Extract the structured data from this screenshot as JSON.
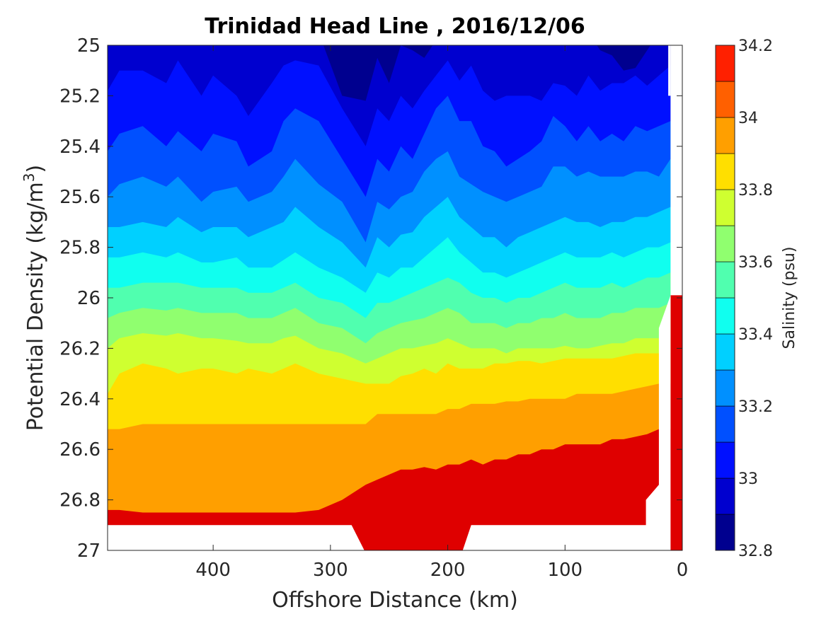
{
  "chart_data": {
    "type": "filled-contour",
    "title": "Trinidad Head Line , 2016/12/06",
    "xlabel": "Offshore Distance (km)",
    "ylabel_prefix": "Potential Density (kg/m",
    "ylabel_sup": "3",
    "ylabel_suffix": ")",
    "xlim": [
      490,
      0
    ],
    "x_reversed": true,
    "ylim": [
      25,
      27
    ],
    "y_reversed": true,
    "xticks": [
      "400",
      "300",
      "200",
      "100",
      "0"
    ],
    "yticks": [
      "25",
      "25.2",
      "25.4",
      "25.6",
      "25.8",
      "26",
      "26.2",
      "26.4",
      "26.6",
      "26.8",
      "27"
    ],
    "colorbar": {
      "label": "Salinity (psu)",
      "range": [
        32.8,
        34.2
      ],
      "ticks": [
        "32.8",
        "33",
        "33.2",
        "33.4",
        "33.6",
        "33.8",
        "34",
        "34.2"
      ],
      "levels": [
        32.8,
        32.9,
        33.0,
        33.1,
        33.2,
        33.3,
        33.4,
        33.5,
        33.6,
        33.7,
        33.8,
        33.9,
        34.0,
        34.1,
        34.2
      ],
      "colors": [
        "#00008f",
        "#0000cf",
        "#0010ff",
        "#0050ff",
        "#0090ff",
        "#00d0ff",
        "#10ffef",
        "#50ffaf",
        "#90ff6f",
        "#cfff30",
        "#ffdf00",
        "#ff9f00",
        "#ff6000",
        "#ff2000",
        "#df0000"
      ]
    },
    "x_stations": [
      490,
      480,
      460,
      440,
      430,
      410,
      400,
      380,
      370,
      350,
      340,
      330,
      310,
      290,
      270,
      260,
      250,
      240,
      230,
      220,
      210,
      200,
      190,
      180,
      170,
      160,
      150,
      140,
      130,
      120,
      110,
      100,
      90,
      80,
      70,
      60,
      50,
      40,
      30,
      20,
      10
    ],
    "contours": [
      {
        "level": 32.9,
        "y": [
          24.95,
          24.95,
          24.95,
          24.95,
          24.95,
          24.95,
          24.95,
          24.95,
          24.95,
          24.95,
          24.95,
          24.95,
          24.95,
          25.2,
          25.22,
          25.05,
          25.15,
          25.0,
          25.02,
          25.05,
          24.98,
          24.95,
          24.95,
          24.95,
          24.95,
          24.95,
          24.95,
          24.95,
          24.95,
          24.95,
          24.95,
          24.95,
          24.95,
          24.95,
          25.02,
          25.04,
          25.1,
          25.09,
          25.02,
          24.95,
          24.95
        ]
      },
      {
        "level": 33.0,
        "y": [
          25.18,
          25.1,
          25.1,
          25.15,
          25.06,
          25.2,
          25.12,
          25.2,
          25.28,
          25.15,
          25.08,
          25.06,
          25.08,
          25.25,
          25.4,
          25.25,
          25.3,
          25.2,
          25.25,
          25.18,
          25.12,
          25.06,
          25.14,
          25.08,
          25.18,
          25.22,
          25.2,
          25.2,
          25.2,
          25.22,
          25.15,
          25.16,
          25.2,
          25.12,
          25.18,
          25.15,
          25.15,
          25.12,
          25.16,
          25.12,
          25.08
        ]
      },
      {
        "level": 33.1,
        "y": [
          25.42,
          25.35,
          25.32,
          25.4,
          25.34,
          25.42,
          25.35,
          25.38,
          25.48,
          25.42,
          25.3,
          25.25,
          25.3,
          25.45,
          25.6,
          25.45,
          25.5,
          25.4,
          25.45,
          25.35,
          25.25,
          25.2,
          25.3,
          25.3,
          25.4,
          25.42,
          25.48,
          25.45,
          25.42,
          25.38,
          25.28,
          25.32,
          25.38,
          25.32,
          25.38,
          25.35,
          25.38,
          25.32,
          25.34,
          25.32,
          25.3
        ]
      },
      {
        "level": 33.2,
        "y": [
          25.6,
          25.55,
          25.52,
          25.56,
          25.52,
          25.62,
          25.58,
          25.56,
          25.62,
          25.58,
          25.52,
          25.45,
          25.55,
          25.62,
          25.78,
          25.62,
          25.65,
          25.6,
          25.58,
          25.5,
          25.45,
          25.42,
          25.52,
          25.55,
          25.58,
          25.6,
          25.62,
          25.6,
          25.58,
          25.56,
          25.48,
          25.48,
          25.52,
          25.5,
          25.52,
          25.52,
          25.52,
          25.5,
          25.5,
          25.52,
          25.45
        ]
      },
      {
        "level": 33.3,
        "y": [
          25.72,
          25.72,
          25.7,
          25.72,
          25.68,
          25.74,
          25.72,
          25.72,
          25.76,
          25.72,
          25.7,
          25.64,
          25.72,
          25.78,
          25.88,
          25.76,
          25.8,
          25.75,
          25.74,
          25.68,
          25.64,
          25.6,
          25.68,
          25.72,
          25.76,
          25.76,
          25.8,
          25.76,
          25.74,
          25.72,
          25.7,
          25.68,
          25.7,
          25.7,
          25.72,
          25.7,
          25.7,
          25.68,
          25.68,
          25.66,
          25.64
        ]
      },
      {
        "level": 33.4,
        "y": [
          25.84,
          25.84,
          25.82,
          25.84,
          25.82,
          25.86,
          25.86,
          25.84,
          25.88,
          25.88,
          25.85,
          25.82,
          25.88,
          25.92,
          25.98,
          25.9,
          25.92,
          25.88,
          25.88,
          25.84,
          25.8,
          25.76,
          25.82,
          25.86,
          25.9,
          25.9,
          25.92,
          25.9,
          25.88,
          25.86,
          25.84,
          25.82,
          25.84,
          25.84,
          25.84,
          25.82,
          25.84,
          25.82,
          25.8,
          25.8,
          25.78
        ]
      },
      {
        "level": 33.5,
        "y": [
          25.96,
          25.96,
          25.94,
          25.94,
          25.94,
          25.96,
          25.96,
          25.96,
          25.98,
          25.98,
          25.96,
          25.94,
          26.0,
          26.02,
          26.08,
          26.02,
          26.02,
          26.0,
          25.98,
          25.96,
          25.94,
          25.92,
          25.94,
          25.98,
          26.0,
          26.0,
          26.02,
          26.0,
          26.0,
          25.98,
          25.96,
          25.94,
          25.96,
          25.96,
          25.96,
          25.94,
          25.96,
          25.94,
          25.92,
          25.92,
          25.9
        ]
      },
      {
        "level": 33.6,
        "y": [
          26.08,
          26.06,
          26.04,
          26.05,
          26.04,
          26.06,
          26.06,
          26.06,
          26.08,
          26.08,
          26.06,
          26.04,
          26.1,
          26.12,
          26.18,
          26.14,
          26.12,
          26.1,
          26.09,
          26.08,
          26.06,
          26.04,
          26.06,
          26.1,
          26.1,
          26.1,
          26.12,
          26.1,
          26.1,
          26.08,
          26.08,
          26.06,
          26.08,
          26.08,
          26.08,
          26.06,
          26.06,
          26.04,
          26.04,
          26.04,
          26.02
        ]
      },
      {
        "level": 33.7,
        "y": [
          26.2,
          26.16,
          26.14,
          26.15,
          26.14,
          26.16,
          26.16,
          26.17,
          26.18,
          26.18,
          26.16,
          26.15,
          26.2,
          26.22,
          26.26,
          26.24,
          26.22,
          26.2,
          26.2,
          26.19,
          26.18,
          26.16,
          26.18,
          26.2,
          26.2,
          26.2,
          26.22,
          26.2,
          26.2,
          26.2,
          26.2,
          26.19,
          26.2,
          26.2,
          26.19,
          26.18,
          26.18,
          26.16,
          26.16,
          26.16,
          26.16
        ]
      },
      {
        "level": 33.8,
        "y": [
          26.38,
          26.3,
          26.26,
          26.28,
          26.3,
          26.28,
          26.28,
          26.3,
          26.28,
          26.3,
          26.28,
          26.26,
          26.3,
          26.32,
          26.34,
          26.34,
          26.34,
          26.31,
          26.3,
          26.28,
          26.3,
          26.26,
          26.28,
          26.28,
          26.28,
          26.26,
          26.26,
          26.25,
          26.25,
          26.26,
          26.25,
          26.24,
          26.24,
          26.24,
          26.24,
          26.24,
          26.23,
          26.22,
          26.22,
          26.22,
          26.22
        ]
      },
      {
        "level": 33.9,
        "y": [
          26.52,
          26.52,
          26.5,
          26.5,
          26.5,
          26.5,
          26.5,
          26.5,
          26.5,
          26.5,
          26.5,
          26.5,
          26.5,
          26.5,
          26.5,
          26.46,
          26.46,
          26.46,
          26.46,
          26.46,
          26.46,
          26.44,
          26.44,
          26.42,
          26.42,
          26.42,
          26.41,
          26.41,
          26.4,
          26.4,
          26.4,
          26.4,
          26.38,
          26.38,
          26.38,
          26.38,
          26.37,
          26.36,
          26.35,
          26.34,
          26.34
        ]
      },
      {
        "level": 34.0,
        "y": [
          26.84,
          26.84,
          26.85,
          26.85,
          26.85,
          26.85,
          26.85,
          26.85,
          26.85,
          26.85,
          26.85,
          26.85,
          26.84,
          26.8,
          26.74,
          26.72,
          26.7,
          26.68,
          26.68,
          26.67,
          26.68,
          26.66,
          26.66,
          26.64,
          26.66,
          26.64,
          26.64,
          26.62,
          26.62,
          26.6,
          26.6,
          26.58,
          26.58,
          26.58,
          26.58,
          26.56,
          26.56,
          26.55,
          26.54,
          26.52,
          26.52
        ]
      }
    ],
    "blank_regions": "white where no data: strip below 26.9 outside 190–280 km, and the coastal wedge east of ~20 km"
  }
}
